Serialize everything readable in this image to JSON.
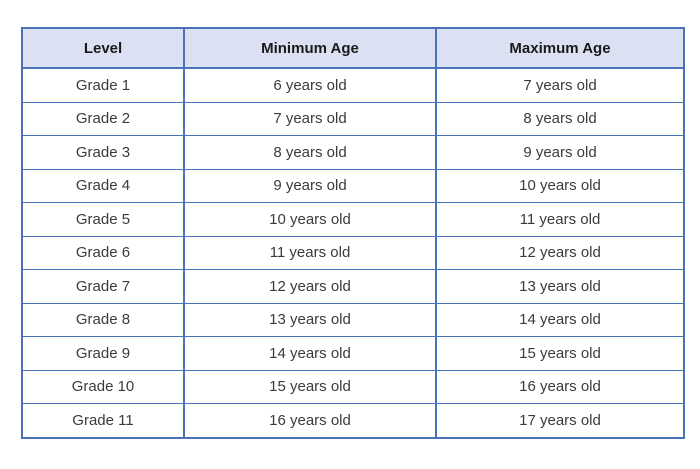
{
  "page": {
    "background_color": "#ffffff"
  },
  "table": {
    "name": "grade-age-table",
    "border_color": "#4a72b8",
    "header_background_color": "#dbe1f2",
    "header_text_color": "#1a1a1a",
    "body_text_color": "#3b3b3b",
    "columns": [
      "Level",
      "Minimum Age",
      "Maximum Age"
    ],
    "rows": [
      [
        "Grade 1",
        "6 years old",
        "7 years old"
      ],
      [
        "Grade 2",
        "7 years old",
        "8 years old"
      ],
      [
        "Grade 3",
        "8 years old",
        "9 years old"
      ],
      [
        "Grade 4",
        "9 years old",
        "10 years old"
      ],
      [
        "Grade 5",
        "10 years old",
        "11 years old"
      ],
      [
        "Grade 6",
        "11 years old",
        "12 years old"
      ],
      [
        "Grade 7",
        "12 years old",
        "13 years old"
      ],
      [
        "Grade 8",
        "13 years old",
        "14 years old"
      ],
      [
        "Grade 9",
        "14 years old",
        "15 years old"
      ],
      [
        "Grade 10",
        "15 years old",
        "16 years old"
      ],
      [
        "Grade 11",
        "16 years old",
        "17 years old"
      ]
    ]
  }
}
